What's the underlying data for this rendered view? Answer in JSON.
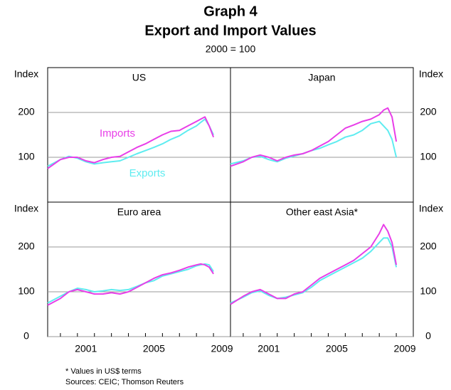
{
  "title": "Graph 4",
  "subtitle": "Export and Import Values",
  "base_note": "2000 = 100",
  "footnote": "*  Values in US$ terms",
  "sources": "Sources: CEIC; Thomson Reuters",
  "chart_data": [
    {
      "type": "line",
      "title": "US",
      "y_label": "Index",
      "ylim": [
        0,
        300
      ],
      "yticks": [
        100,
        200
      ],
      "xlim": [
        1999.25,
        2010
      ],
      "grid": true,
      "x": [
        1999.25,
        2000,
        2000.5,
        2001,
        2001.5,
        2002,
        2002.5,
        2003,
        2003.5,
        2004,
        2004.5,
        2005,
        2005.5,
        2006,
        2006.5,
        2007,
        2007.5,
        2008,
        2008.25,
        2008.5,
        2008.75,
        2009
      ],
      "series": [
        {
          "name": "Imports",
          "color": "#e83ee8",
          "values": [
            75,
            95,
            100,
            100,
            92,
            88,
            95,
            100,
            102,
            112,
            122,
            130,
            140,
            150,
            158,
            160,
            170,
            180,
            185,
            190,
            170,
            145
          ]
        },
        {
          "name": "Exports",
          "color": "#5eecf0",
          "values": [
            80,
            95,
            102,
            98,
            90,
            85,
            88,
            90,
            92,
            100,
            108,
            115,
            122,
            130,
            140,
            148,
            160,
            170,
            178,
            185,
            170,
            150
          ]
        }
      ]
    },
    {
      "type": "line",
      "title": "Japan",
      "y_label": "Index",
      "ylim": [
        0,
        300
      ],
      "yticks": [
        100,
        200
      ],
      "xlim": [
        1999.25,
        2010
      ],
      "grid": true,
      "x": [
        1999.25,
        2000,
        2000.5,
        2001,
        2001.5,
        2002,
        2002.5,
        2003,
        2003.5,
        2004,
        2004.5,
        2005,
        2005.5,
        2006,
        2006.5,
        2007,
        2007.5,
        2008,
        2008.25,
        2008.5,
        2008.75,
        2009
      ],
      "series": [
        {
          "color": "#e83ee8",
          "values": [
            80,
            90,
            100,
            105,
            100,
            92,
            100,
            105,
            108,
            115,
            125,
            135,
            150,
            165,
            172,
            180,
            185,
            195,
            205,
            210,
            190,
            135
          ]
        },
        {
          "color": "#5eecf0",
          "values": [
            85,
            92,
            100,
            102,
            95,
            90,
            98,
            103,
            108,
            115,
            120,
            128,
            135,
            145,
            150,
            160,
            175,
            180,
            170,
            160,
            140,
            100
          ]
        }
      ]
    },
    {
      "type": "line",
      "title": "Euro area",
      "y_label": "Index",
      "ylim": [
        0,
        300
      ],
      "yticks": [
        0,
        100,
        200
      ],
      "xlim": [
        1999.25,
        2010
      ],
      "grid": true,
      "xticks": [
        {
          "value": 2001.5,
          "label": "2001"
        },
        {
          "value": 2005.5,
          "label": "2005"
        },
        {
          "value": 2009.5,
          "label": "2009"
        }
      ],
      "xminorticks": [
        2000,
        2001,
        2002,
        2003,
        2004,
        2005,
        2006,
        2007,
        2008,
        2009
      ],
      "x": [
        1999.25,
        2000,
        2000.5,
        2001,
        2001.5,
        2002,
        2002.5,
        2003,
        2003.5,
        2004,
        2004.5,
        2005,
        2005.5,
        2006,
        2006.5,
        2007,
        2007.5,
        2008,
        2008.25,
        2008.5,
        2008.75,
        2009
      ],
      "series": [
        {
          "color": "#e83ee8",
          "values": [
            70,
            85,
            100,
            105,
            100,
            95,
            95,
            98,
            95,
            100,
            110,
            120,
            130,
            138,
            142,
            148,
            155,
            160,
            162,
            160,
            155,
            140
          ]
        },
        {
          "color": "#5eecf0",
          "values": [
            75,
            90,
            100,
            108,
            105,
            100,
            102,
            105,
            103,
            105,
            112,
            120,
            125,
            135,
            140,
            145,
            150,
            158,
            160,
            162,
            160,
            145
          ]
        }
      ]
    },
    {
      "type": "line",
      "title": "Other east Asia*",
      "y_label": "Index",
      "ylim": [
        0,
        300
      ],
      "yticks": [
        0,
        100,
        200
      ],
      "xlim": [
        1999.25,
        2010
      ],
      "grid": true,
      "xticks": [
        {
          "value": 2001.5,
          "label": "2001"
        },
        {
          "value": 2005.5,
          "label": "2005"
        },
        {
          "value": 2009.5,
          "label": "2009"
        }
      ],
      "xminorticks": [
        2000,
        2001,
        2002,
        2003,
        2004,
        2005,
        2006,
        2007,
        2008,
        2009
      ],
      "x": [
        1999.25,
        2000,
        2000.5,
        2001,
        2001.5,
        2002,
        2002.5,
        2003,
        2003.5,
        2004,
        2004.5,
        2005,
        2005.5,
        2006,
        2006.5,
        2007,
        2007.5,
        2008,
        2008.25,
        2008.5,
        2008.75,
        2009
      ],
      "series": [
        {
          "color": "#e83ee8",
          "values": [
            72,
            90,
            100,
            105,
            95,
            85,
            85,
            95,
            100,
            115,
            130,
            140,
            150,
            160,
            170,
            185,
            200,
            230,
            250,
            235,
            210,
            160
          ]
        },
        {
          "color": "#5eecf0",
          "values": [
            75,
            88,
            98,
            102,
            92,
            85,
            88,
            93,
            98,
            110,
            125,
            135,
            145,
            155,
            165,
            175,
            190,
            210,
            220,
            220,
            200,
            155
          ]
        }
      ]
    }
  ]
}
